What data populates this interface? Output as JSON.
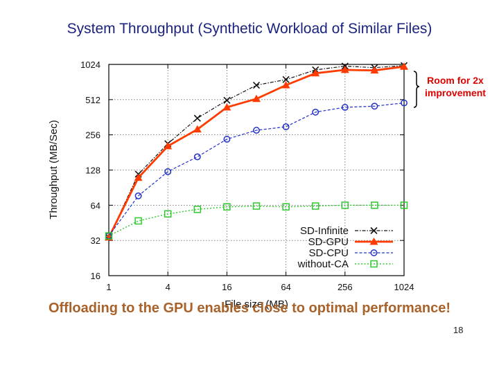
{
  "slide": {
    "title": "System Throughput (Synthetic Workload of Similar Files)",
    "annotation_line1": "Room for 2x",
    "annotation_line2": "improvement",
    "conclusion": "Offloading to the GPU enables close to optimal performance!",
    "page_number": "18"
  },
  "chart_data": {
    "type": "line",
    "xlabel": "File size (MB)",
    "ylabel": "Throughput (MB/Sec)",
    "x_scale": "log2",
    "y_scale": "log2",
    "xlim": [
      1,
      1024
    ],
    "ylim": [
      16,
      1024
    ],
    "x_ticks": [
      1,
      4,
      16,
      64,
      256,
      1024
    ],
    "x_tick_labels": [
      "1",
      "4",
      "16",
      "64",
      "256",
      "1024"
    ],
    "y_ticks": [
      16,
      32,
      64,
      128,
      256,
      512,
      1024
    ],
    "y_tick_labels": [
      "16",
      "32",
      "64",
      "128",
      "256",
      "512",
      "1024"
    ],
    "grid": true,
    "legend_position": "bottom-right",
    "x": [
      1,
      2,
      4,
      8,
      16,
      32,
      64,
      128,
      256,
      512,
      1024
    ],
    "series": [
      {
        "name": "SD-Infinite",
        "color": "#111111",
        "marker": "x",
        "values": [
          34,
          118,
          215,
          355,
          505,
          680,
          760,
          920,
          990,
          960,
          1000
        ]
      },
      {
        "name": "SD-GPU",
        "color": "#ff3b00",
        "marker": "triangle",
        "values": [
          34,
          110,
          205,
          285,
          440,
          520,
          680,
          860,
          920,
          910,
          980
        ]
      },
      {
        "name": "SD-CPU",
        "color": "#2030c8",
        "marker": "circle",
        "values": [
          35,
          77,
          124,
          166,
          235,
          280,
          300,
          400,
          440,
          450,
          480
        ]
      },
      {
        "name": "without-CA",
        "color": "#2dc82d",
        "marker": "square",
        "values": [
          35,
          47,
          54,
          59,
          62,
          63,
          62,
          63,
          64,
          64,
          64
        ]
      }
    ]
  }
}
